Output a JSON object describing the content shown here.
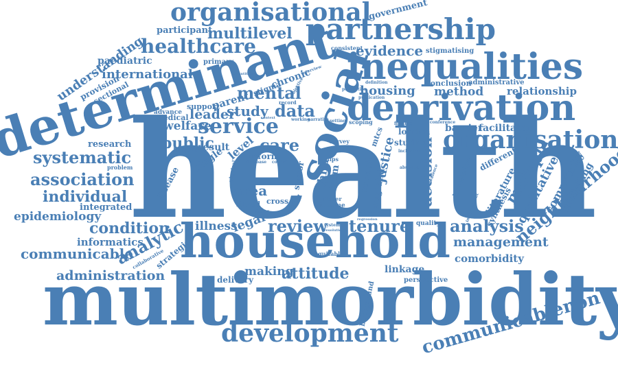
{
  "color": "#4a7fb5",
  "words": {
    "health": "health",
    "multimorbidity": "multimorbidity",
    "household": "household",
    "determinant": "determinant",
    "social": "social",
    "deprivation": "deprivation",
    "inequalities": "inequalities",
    "partnership": "partnership",
    "organisational": "organisational",
    "organisation": "organisation",
    "service": "service",
    "healthcare": "healthcare",
    "multilevel": "multilevel",
    "evidence": "evidence",
    "development": "development",
    "communicablenon": "communicablenon",
    "neighbourhood": "neighbourhood",
    "systematic": "systematic",
    "association": "association",
    "individual": "individual",
    "epidemiology": "epidemiology",
    "condition": "condition",
    "communicable": "communicable",
    "administration": "administration",
    "analytic": "analytic",
    "review": "review",
    "tenure": "tenure",
    "analysis": "analysis",
    "management": "management",
    "attitude": "attitude",
    "mental": "mental",
    "data": "data",
    "study": "study",
    "care": "care",
    "public": "public",
    "leader": "leader",
    "welfare": "welfare",
    "understanding": "understanding",
    "international": "international",
    "paediatric": "paediatric",
    "government": "government",
    "participant": "participant",
    "housing": "housing",
    "method": "method",
    "relationship": "relationship",
    "barrier": "barrier",
    "facilitator": "facilitator",
    "multiple": "multiple",
    "qualitative": "qualitative",
    "community": "community",
    "modelling": "modelling",
    "literature": "literature",
    "synthesis": "synthesis",
    "decision": "decision",
    "justice": "justice",
    "child": "child",
    "term": "term",
    "council": "council",
    "england": "england",
    "london": "london",
    "studies": "studies",
    "mtcs": "mtcs",
    "comorbidity": "comorbidity",
    "linkage": "linkage",
    "making": "making",
    "delivery": "delivery",
    "informatics": "informatics",
    "integrated": "integrated",
    "research": "research",
    "illness": "illness",
    "legal": "legal",
    "area": "area",
    "level": "level",
    "result": "result",
    "impact": "impact",
    "single": "single",
    "disease": "disease",
    "strategic": "strategic",
    "collaborative": "collaborative",
    "provision": "provision",
    "sectional": "sectional",
    "chronic": "chronic",
    "stigma": "stigma",
    "primary": "primary",
    "medical": "medical",
    "support": "support",
    "parent": "parent",
    "advance": "advance",
    "conclusion": "conclusion",
    "administrative": "administrative",
    "stigmatising": "stigmatising",
    "consistent": "consistent",
    "different": "different",
    "knowledge": "knowledge",
    "quality": "quality",
    "perspective": "perspective",
    "background": "background",
    "income": "income",
    "higher": "higher",
    "equitable": "equitable",
    "linked": "linked",
    "cross": "cross",
    "inform": "inform",
    "survey": "survey",
    "scoping": "scoping",
    "finding": "finding",
    "conference": "conference",
    "setting": "setting",
    "problem": "problem",
    "interview": "interview",
    "objective": "objective",
    "record": "record",
    "working": "working",
    "narrative": "narrative",
    "definition": "definition",
    "population": "population",
    "publication": "publication",
    "influence": "influence",
    "system": "system",
    "resolution": "resolution",
    "improvement": "improvement",
    "inclusion": "inclusion",
    "senior": "senior",
    "physical": "physical",
    "living": "living",
    "local": "local",
    "hips": "hips",
    "context": "context",
    "database": "database",
    "regression": "regression",
    "prevalence": "prevalence",
    "abstract": "abstract",
    "quantitative": "quantitative",
    "cohort": "cohort",
    "factor": "factor"
  }
}
